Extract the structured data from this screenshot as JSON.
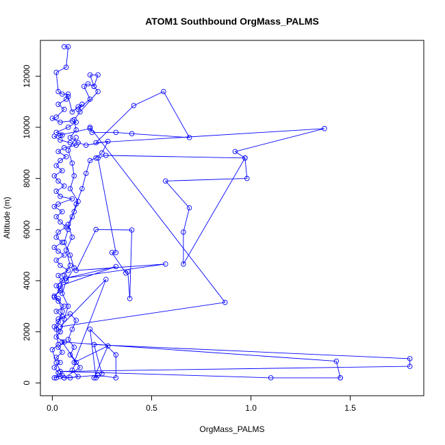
{
  "chart_data": {
    "type": "line",
    "title": "ATOM1 Southbound OrgMass_PALMS",
    "xlabel": "OrgMass_PALMS",
    "ylabel": "Altitude (m)",
    "xlim": [
      -0.06,
      1.87
    ],
    "ylim": [
      -500,
      13400
    ],
    "x_ticks": [
      0,
      0.5,
      1,
      1.5
    ],
    "x_tick_labels": [
      "0.0",
      "0.5",
      "1.0",
      "1.5"
    ],
    "y_ticks": [
      0,
      2000,
      4000,
      6000,
      8000,
      10000,
      12000
    ],
    "y_tick_labels": [
      "0",
      "2000",
      "4000",
      "6000",
      "8000",
      "10000",
      "12000"
    ],
    "grid": false,
    "color": "#0000ff",
    "series": [
      {
        "points": [
          [
            0.06,
            13150
          ],
          [
            0.08,
            13150
          ],
          [
            0.07,
            12350
          ],
          [
            0.02,
            12150
          ],
          [
            0.03,
            11400
          ],
          [
            0.05,
            11300
          ],
          [
            0.08,
            11300
          ],
          [
            0.07,
            11100
          ],
          [
            0.03,
            10900
          ],
          [
            0.06,
            10700
          ],
          [
            0.02,
            10400
          ],
          [
            0.0,
            10350
          ],
          [
            0.04,
            10200
          ],
          [
            0.1,
            10250
          ],
          [
            0.12,
            10200
          ],
          [
            0.08,
            10000
          ],
          [
            0.02,
            9800
          ],
          [
            0.05,
            9700
          ],
          [
            0.01,
            9650
          ],
          [
            0.04,
            9500
          ],
          [
            0.09,
            9400
          ],
          [
            0.12,
            9300
          ],
          [
            0.06,
            9200
          ],
          [
            0.03,
            9050
          ],
          [
            0.07,
            8850
          ],
          [
            0.04,
            8700
          ],
          [
            0.02,
            8500
          ],
          [
            0.05,
            8300
          ],
          [
            0.01,
            8100
          ],
          [
            0.03,
            7900
          ],
          [
            0.06,
            7700
          ],
          [
            0.02,
            7500
          ],
          [
            0.04,
            7300
          ],
          [
            0.1,
            7200
          ],
          [
            0.03,
            7000
          ],
          [
            0.01,
            6900
          ],
          [
            0.05,
            6700
          ],
          [
            0.02,
            6500
          ],
          [
            0.04,
            6300
          ],
          [
            0.07,
            6100
          ],
          [
            0.03,
            5900
          ],
          [
            0.02,
            5700
          ],
          [
            0.05,
            5500
          ],
          [
            0.01,
            5300
          ],
          [
            0.03,
            5150
          ],
          [
            0.06,
            5000
          ],
          [
            0.02,
            4800
          ],
          [
            0.04,
            4600
          ],
          [
            0.08,
            4400
          ],
          [
            0.03,
            4200
          ],
          [
            0.05,
            4000
          ],
          [
            0.02,
            3800
          ],
          [
            0.04,
            3600
          ],
          [
            0.01,
            3400
          ],
          [
            0.03,
            3200
          ],
          [
            0.06,
            3000
          ],
          [
            0.02,
            2800
          ],
          [
            0.05,
            2600
          ],
          [
            0.03,
            2400
          ],
          [
            0.01,
            2200
          ],
          [
            0.04,
            2000
          ],
          [
            0.02,
            1800
          ],
          [
            0.06,
            1600
          ],
          [
            0.03,
            1400
          ],
          [
            0.05,
            1200
          ],
          [
            0.02,
            1000
          ],
          [
            0.04,
            800
          ],
          [
            0.01,
            600
          ],
          [
            0.03,
            400
          ],
          [
            0.02,
            200
          ]
        ]
      },
      {
        "points": [
          [
            0.08,
            11200
          ],
          [
            0.1,
            10600
          ],
          [
            0.13,
            10800
          ],
          [
            0.15,
            10900
          ],
          [
            0.13,
            10700
          ],
          [
            0.19,
            11100
          ],
          [
            0.16,
            11600
          ],
          [
            0.18,
            11700
          ],
          [
            0.21,
            11600
          ],
          [
            0.19,
            12050
          ],
          [
            0.23,
            12050
          ],
          [
            0.21,
            11600
          ],
          [
            0.23,
            11400
          ],
          [
            0.14,
            10600
          ],
          [
            0.11,
            10300
          ],
          [
            0.12,
            9900
          ],
          [
            0.09,
            9600
          ],
          [
            0.13,
            9400
          ],
          [
            0.17,
            9300
          ],
          [
            0.28,
            9450
          ],
          [
            0.25,
            9000
          ],
          [
            0.22,
            8800
          ],
          [
            0.19,
            8700
          ],
          [
            0.17,
            8200
          ],
          [
            0.15,
            7600
          ],
          [
            0.12,
            7000
          ],
          [
            0.1,
            6500
          ],
          [
            0.08,
            6000
          ],
          [
            0.06,
            5500
          ],
          [
            0.09,
            5000
          ],
          [
            0.11,
            4500
          ],
          [
            0.07,
            4000
          ],
          [
            0.05,
            3500
          ],
          [
            0.08,
            3000
          ],
          [
            0.06,
            2500
          ],
          [
            0.04,
            2000
          ]
        ]
      },
      {
        "points": [
          [
            0.04,
            9700
          ],
          [
            0.19,
            9950
          ],
          [
            0.2,
            9800
          ],
          [
            0.32,
            9800
          ],
          [
            0.4,
            9750
          ],
          [
            0.69,
            9600
          ],
          [
            0.56,
            11400
          ],
          [
            0.41,
            10850
          ],
          [
            0.22,
            9400
          ],
          [
            1.37,
            9950
          ],
          [
            0.92,
            9050
          ],
          [
            0.97,
            8800
          ],
          [
            0.98,
            8000
          ],
          [
            0.57,
            7900
          ],
          [
            0.69,
            6850
          ],
          [
            0.66,
            5900
          ],
          [
            0.66,
            4650
          ],
          [
            0.97,
            8800
          ],
          [
            0.27,
            8900
          ],
          [
            0.23,
            8800
          ],
          [
            0.32,
            5100
          ],
          [
            0.3,
            5100
          ],
          [
            0.37,
            4300
          ],
          [
            0.38,
            4350
          ],
          [
            0.39,
            3300
          ],
          [
            0.4,
            5980
          ],
          [
            0.22,
            6000
          ],
          [
            0.12,
            4400
          ],
          [
            0.57,
            4650
          ],
          [
            0.07,
            4100
          ],
          [
            0.32,
            4550
          ],
          [
            0.04,
            3800
          ]
        ]
      },
      {
        "points": [
          [
            0.19,
            10000
          ],
          [
            0.87,
            3150
          ],
          [
            0.04,
            2200
          ],
          [
            0.27,
            4050
          ],
          [
            0.11,
            800
          ],
          [
            0.28,
            1450
          ],
          [
            0.21,
            200
          ],
          [
            0.25,
            350
          ],
          [
            0.21,
            1500
          ],
          [
            1.8,
            950
          ],
          [
            1.8,
            650
          ],
          [
            0.04,
            450
          ],
          [
            1.1,
            200
          ],
          [
            1.45,
            200
          ],
          [
            1.45,
            200
          ],
          [
            1.43,
            850
          ],
          [
            0.05,
            1600
          ],
          [
            0.14,
            600
          ],
          [
            0.06,
            200
          ],
          [
            0.23,
            300
          ],
          [
            0.32,
            200
          ],
          [
            0.32,
            1100
          ],
          [
            0.19,
            2100
          ],
          [
            0.22,
            200
          ]
        ]
      },
      {
        "points": [
          [
            0.03,
            2500
          ],
          [
            0.09,
            2700
          ],
          [
            0.12,
            2450
          ],
          [
            0.1,
            2100
          ],
          [
            0.08,
            1700
          ],
          [
            0.11,
            1400
          ],
          [
            0.09,
            1100
          ],
          [
            0.12,
            800
          ],
          [
            0.1,
            500
          ],
          [
            0.13,
            250
          ],
          [
            0.09,
            200
          ],
          [
            0.06,
            200
          ],
          [
            0.04,
            250
          ],
          [
            0.01,
            200
          ],
          [
            0.05,
            300
          ],
          [
            0.02,
            800
          ],
          [
            0.0,
            1300
          ],
          [
            0.03,
            1500
          ],
          [
            0.02,
            2100
          ],
          [
            0.05,
            2800
          ],
          [
            0.03,
            3300
          ],
          [
            0.01,
            3350
          ],
          [
            0.04,
            3700
          ],
          [
            0.06,
            4200
          ],
          [
            0.09,
            4600
          ],
          [
            0.07,
            5200
          ],
          [
            0.1,
            5700
          ],
          [
            0.08,
            6200
          ],
          [
            0.11,
            6700
          ],
          [
            0.13,
            7100
          ],
          [
            0.09,
            7600
          ],
          [
            0.11,
            8100
          ],
          [
            0.1,
            8600
          ],
          [
            0.08,
            9100
          ],
          [
            0.12,
            9600
          ]
        ]
      }
    ]
  }
}
